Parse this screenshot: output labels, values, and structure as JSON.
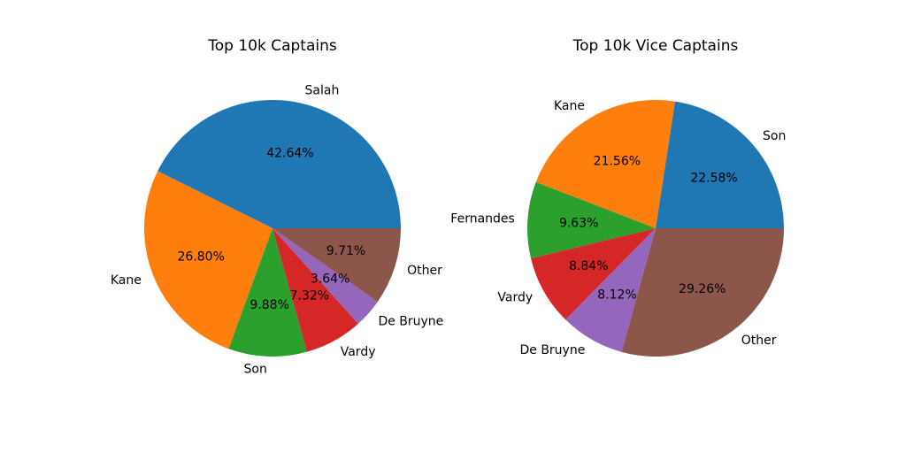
{
  "chart_data": [
    {
      "type": "pie",
      "title": "Top 10k Captains",
      "start_angle_deg": 0,
      "direction": "counterclockwise",
      "slices": [
        {
          "label": "Salah",
          "value": 42.64,
          "pct_label": "42.64%",
          "color": "#1f77b4"
        },
        {
          "label": "Kane",
          "value": 26.8,
          "pct_label": "26.80%",
          "color": "#ff7f0e"
        },
        {
          "label": "Son",
          "value": 9.88,
          "pct_label": "9.88%",
          "color": "#2ca02c"
        },
        {
          "label": "Vardy",
          "value": 7.32,
          "pct_label": "7.32%",
          "color": "#d62728"
        },
        {
          "label": "De Bruyne",
          "value": 3.64,
          "pct_label": "3.64%",
          "color": "#9467bd"
        },
        {
          "label": "Other",
          "value": 9.71,
          "pct_label": "9.71%",
          "color": "#8c564b"
        }
      ]
    },
    {
      "type": "pie",
      "title": "Top 10k Vice Captains",
      "start_angle_deg": 0,
      "direction": "counterclockwise",
      "slices": [
        {
          "label": "Son",
          "value": 22.58,
          "pct_label": "22.58%",
          "color": "#1f77b4"
        },
        {
          "label": "Kane",
          "value": 21.56,
          "pct_label": "21.56%",
          "color": "#ff7f0e"
        },
        {
          "label": "Fernandes",
          "value": 9.63,
          "pct_label": "9.63%",
          "color": "#2ca02c"
        },
        {
          "label": "Vardy",
          "value": 8.84,
          "pct_label": "8.84%",
          "color": "#d62728"
        },
        {
          "label": "De Bruyne",
          "value": 8.12,
          "pct_label": "8.12%",
          "color": "#9467bd"
        },
        {
          "label": "Other",
          "value": 29.26,
          "pct_label": "29.26%",
          "color": "#8c564b"
        }
      ]
    }
  ]
}
